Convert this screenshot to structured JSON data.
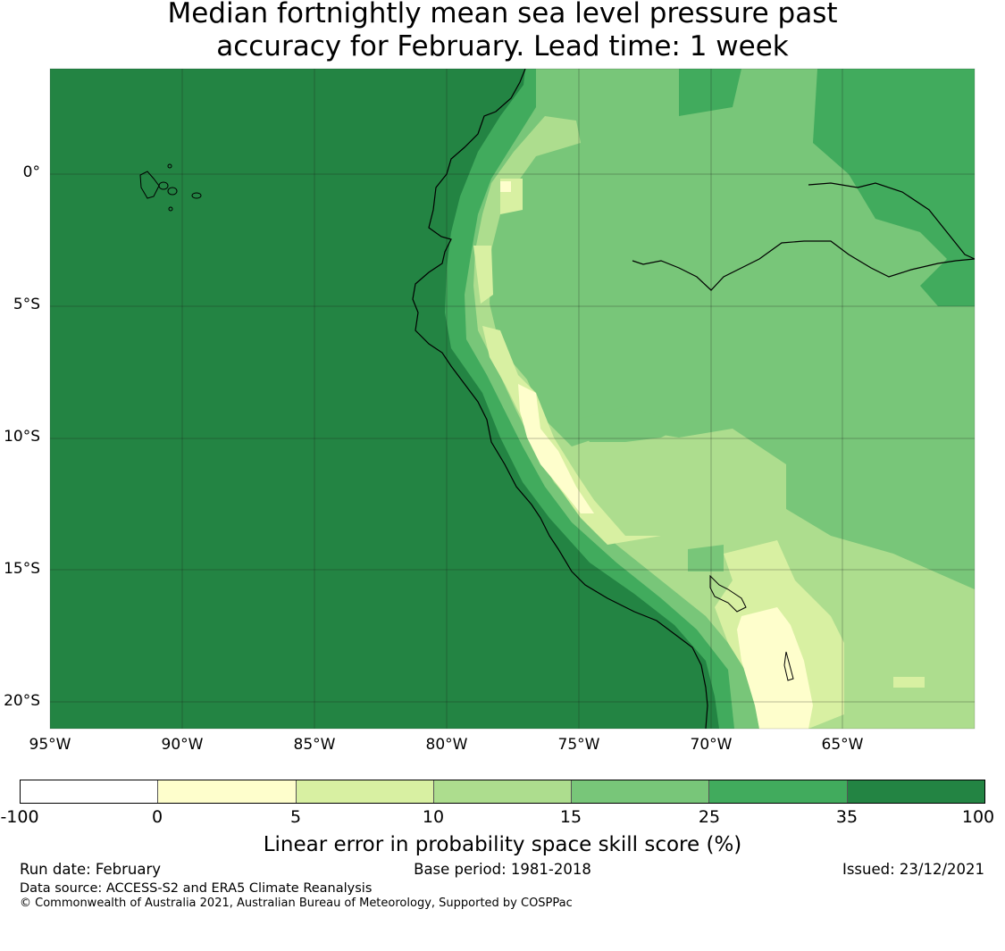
{
  "title": {
    "line1": "Median fortnightly mean sea level pressure past",
    "line2": "accuracy for February. Lead time: 1 week"
  },
  "map": {
    "lat_labels": [
      "0°",
      "5°S",
      "10°S",
      "15°S",
      "20°S"
    ],
    "lat_values": [
      0,
      -5,
      -10,
      -15,
      -20
    ],
    "lon_labels": [
      "95°W",
      "90°W",
      "85°W",
      "80°W",
      "75°W",
      "70°W",
      "65°W"
    ],
    "lon_values": [
      -95,
      -90,
      -85,
      -80,
      -75,
      -70,
      -65
    ],
    "extent": {
      "lon_min": -95,
      "lon_max": -60,
      "lat_min": -21,
      "lat_max": 4
    }
  },
  "colorbar": {
    "ticks": [
      "-100",
      "0",
      "5",
      "10",
      "15",
      "25",
      "35",
      "100"
    ],
    "colors": [
      "#ffffff",
      "#fefecc",
      "#d8f0a2",
      "#addd8e",
      "#78c679",
      "#41ab5d",
      "#238443"
    ],
    "label": "Linear error in probability space skill score (%)"
  },
  "footer": {
    "run_date": "Run date: February",
    "base_period": "Base period: 1981-2018",
    "issued": "Issued: 23/12/2021",
    "data_source": "Data source: ACCESS-S2 and ERA5 Climate Reanalysis",
    "copyright": "© Commonwealth of Australia 2021, Australian Bureau of Meteorology, Supported by COSPPac"
  }
}
